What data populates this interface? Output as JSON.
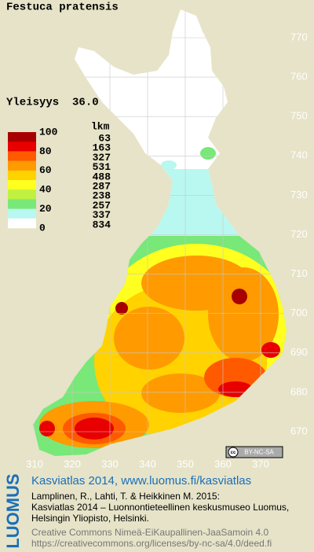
{
  "title": "Festuca pratensis",
  "frequency": "Yleisyys  36.0",
  "legend": {
    "scale_labels": [
      100,
      80,
      60,
      40,
      20,
      0
    ],
    "count_header": "lkm",
    "classes": [
      {
        "color": "#a80000",
        "count": 63
      },
      {
        "color": "#e80000",
        "count": 163
      },
      {
        "color": "#ff5a00",
        "count": 327
      },
      {
        "color": "#ff9a00",
        "count": 531
      },
      {
        "color": "#ffd200",
        "count": 488
      },
      {
        "color": "#ffff20",
        "count": 287
      },
      {
        "color": "#c0f040",
        "count": 238
      },
      {
        "color": "#78e878",
        "count": 257
      },
      {
        "color": "#b8f8f0",
        "count": 337
      },
      {
        "color": "#ffffff",
        "count": 834
      }
    ]
  },
  "grid": {
    "northing": [
      770,
      760,
      750,
      740,
      730,
      720,
      710,
      700,
      690,
      680,
      670
    ],
    "easting": [
      310,
      320,
      330,
      340,
      350,
      360,
      370
    ]
  },
  "license_badge": {
    "icon": "cc",
    "text": "BY-NC-SA"
  },
  "credits": {
    "logo": "LUOMUS",
    "heading": "Kasviatlas 2014, www.luomus.fi/kasviatlas",
    "citation": [
      "Lamplinen, R., Lahti, T. & Heikkinen M. 2015:",
      "Kasviatlas 2014 – Luonnontieteellinen keskusmuseo Luomus,",
      "Helsingin Yliopisto, Helsinki."
    ],
    "license": [
      "Creative Commons Nimeä-EiKaupallinen-JaaSamoin 4.0",
      "https://creativecommons.org/licenses/by-nc-sa/4.0/deed.fi"
    ]
  }
}
